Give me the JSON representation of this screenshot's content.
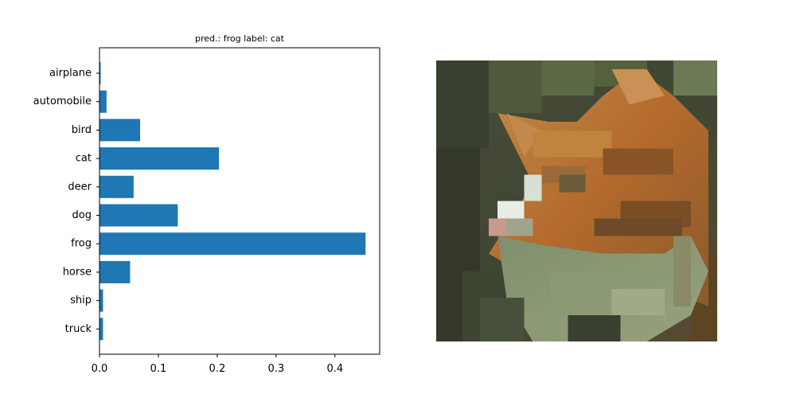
{
  "figure": {
    "background_color": "#ffffff"
  },
  "chart_data": {
    "type": "bar",
    "orientation": "horizontal",
    "title": "pred.: frog   label: cat",
    "xlabel": "",
    "ylabel": "",
    "categories": [
      "airplane",
      "automobile",
      "bird",
      "cat",
      "deer",
      "dog",
      "frog",
      "horse",
      "ship",
      "truck"
    ],
    "values": [
      0.002,
      0.012,
      0.069,
      0.203,
      0.058,
      0.133,
      0.452,
      0.052,
      0.006,
      0.006
    ],
    "xlim": [
      0,
      0.476
    ],
    "xticks": [
      0.0,
      0.1,
      0.2,
      0.3,
      0.4
    ],
    "xtick_labels": [
      "0.0",
      "0.1",
      "0.2",
      "0.3",
      "0.4"
    ],
    "grid": false,
    "legend": "none",
    "bar_color": "#1f77b4"
  },
  "image_panel": {
    "subject": "cat-photo",
    "style": "pixelated-32x32"
  }
}
